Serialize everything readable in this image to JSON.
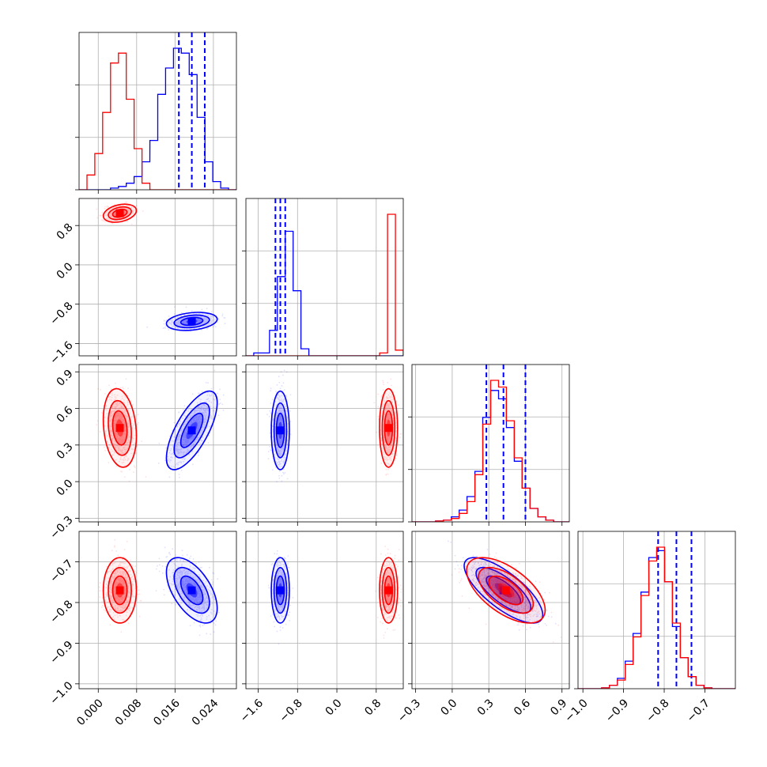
{
  "chart_data": {
    "type": "corner",
    "grid": true,
    "colors": {
      "blue": "#0000ff",
      "red": "#ff0000"
    },
    "parameters": [
      {
        "range": [
          -0.004,
          0.0288
        ],
        "ticks": [
          "0.000",
          "0.008",
          "0.016",
          "0.024"
        ],
        "tick_values": [
          0.0,
          0.008,
          0.016,
          0.024
        ]
      },
      {
        "range": [
          -1.85,
          1.35
        ],
        "ticks": [
          "−1.6",
          "−0.8",
          "0.0",
          "0.8"
        ],
        "tick_values": [
          -1.6,
          -0.8,
          0.0,
          0.8
        ]
      },
      {
        "range": [
          -0.33,
          0.96
        ],
        "ticks": [
          "−0.3",
          "0.0",
          "0.3",
          "0.6",
          "0.9"
        ],
        "tick_values": [
          -0.3,
          0.0,
          0.3,
          0.6,
          0.9
        ]
      },
      {
        "range": [
          -1.012,
          -0.625
        ],
        "ticks": [
          "−1.0",
          "−0.9",
          "−0.8",
          "−0.7"
        ],
        "tick_values": [
          -1.0,
          -0.9,
          -0.8,
          -0.7
        ]
      }
    ],
    "series": [
      {
        "color": "#0000ff",
        "means": [
          0.0195,
          -1.15,
          0.42,
          -0.77
        ],
        "sds": [
          0.0023,
          0.08,
          0.14,
          0.035
        ],
        "correlations": {
          "0-2": 0.7,
          "0-3": -0.55,
          "2-3": -0.75,
          "1-2": 0.0,
          "1-3": 0.0,
          "0-1": 0.25
        },
        "quantiles": [
          [
            0.0168,
            0.0195,
            0.0222
          ],
          [
            -1.25,
            -1.15,
            -1.05
          ],
          [
            0.28,
            0.42,
            0.6
          ],
          [
            -0.815,
            -0.77,
            -0.733
          ]
        ],
        "hists": [
          [
            0,
            0,
            0,
            0,
            1,
            2,
            4,
            8,
            17,
            30,
            58,
            74,
            86,
            83,
            70,
            44,
            17,
            5,
            1,
            0
          ],
          [
            0,
            2,
            2,
            18,
            56,
            88,
            46,
            5,
            0,
            0,
            0,
            0,
            0,
            0,
            0,
            0,
            0,
            0,
            0,
            0
          ],
          [
            0,
            0,
            0,
            0.5,
            1,
            3,
            7,
            15,
            30,
            62,
            78,
            73,
            56,
            36,
            20,
            8,
            3,
            1,
            0,
            0
          ],
          [
            0,
            0,
            0,
            0.5,
            2,
            6,
            16,
            32,
            56,
            76,
            80,
            62,
            36,
            18,
            7,
            2,
            0.5,
            0,
            0,
            0
          ]
        ]
      },
      {
        "color": "#ff0000",
        "means": [
          0.0045,
          1.05,
          0.44,
          -0.77
        ],
        "sds": [
          0.0015,
          0.08,
          0.14,
          0.035
        ],
        "correlations": {
          "0-2": -0.2,
          "0-3": 0.0,
          "2-3": -0.6,
          "1-2": 0.0,
          "1-3": 0.0,
          "0-1": 0.3
        },
        "quantiles": null,
        "hists": [
          [
            0,
            9,
            22,
            47,
            77,
            83,
            55,
            25,
            4,
            0,
            0,
            0,
            0,
            0,
            0,
            0,
            0,
            0,
            0,
            0
          ],
          [
            0,
            0,
            0,
            0,
            0,
            0,
            0,
            0,
            0,
            0,
            0,
            0,
            0,
            0,
            0,
            0,
            0,
            2,
            100,
            4
          ],
          [
            0,
            0,
            0,
            0.5,
            1,
            2,
            5,
            12,
            28,
            58,
            84,
            80,
            60,
            38,
            20,
            8,
            3,
            1,
            0,
            0
          ],
          [
            0,
            0,
            0,
            0.5,
            2,
            5,
            14,
            30,
            54,
            74,
            82,
            62,
            38,
            18,
            7,
            2,
            0.5,
            0,
            0,
            0
          ]
        ]
      }
    ]
  }
}
